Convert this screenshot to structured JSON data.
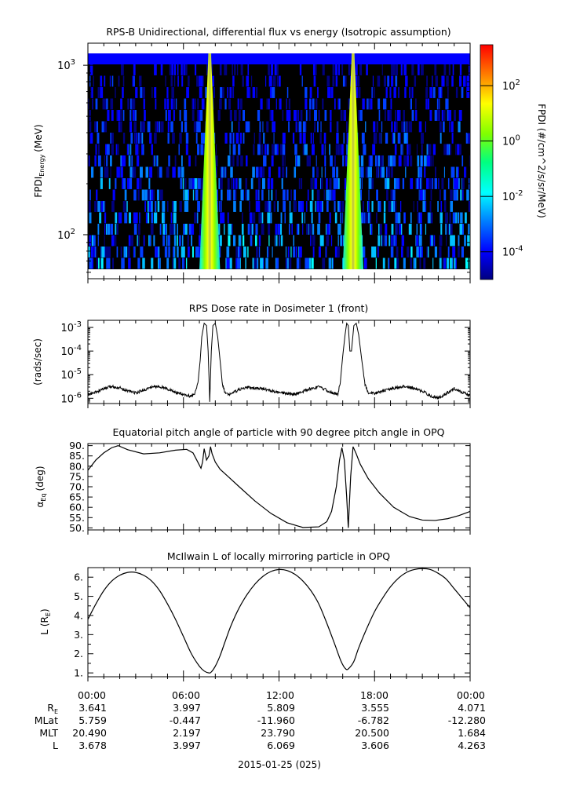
{
  "page": {
    "date_label": "2015-01-25 (025)"
  },
  "ephemeris": {
    "times": [
      "00:00",
      "06:00",
      "12:00",
      "18:00",
      "00:00"
    ],
    "rows": [
      {
        "label": "R",
        "sub": "E",
        "values": [
          "3.641",
          "3.997",
          "5.809",
          "3.555",
          "4.071"
        ]
      },
      {
        "label": "MLat",
        "sub": "",
        "values": [
          "5.759",
          "-0.447",
          "-11.960",
          "-6.782",
          "-12.280"
        ]
      },
      {
        "label": "MLT",
        "sub": "",
        "values": [
          "20.490",
          "2.197",
          "23.790",
          "20.500",
          "1.684"
        ]
      },
      {
        "label": "L",
        "sub": "",
        "values": [
          "3.678",
          "3.997",
          "6.069",
          "3.606",
          "4.263"
        ]
      }
    ]
  },
  "chart_data": [
    {
      "type": "heatmap",
      "title": "RPS-B  Unidirectional, differential flux vs energy (Isotropic assumption)",
      "ylabel": "FPDI",
      "ylabel_sub": "Energy",
      "ylabel_unit": "(MeV)",
      "yscale": "log",
      "ylim": [
        55,
        1350
      ],
      "yticks": [
        {
          "base": "10",
          "exp": "2",
          "value": 100
        },
        {
          "base": "10",
          "exp": "3",
          "value": 1000
        }
      ],
      "xlim_hours": [
        0,
        24
      ],
      "colorbar": {
        "label": "FPDI (#/cm^2/s/sr/MeV)",
        "scale": "log",
        "range": [
          1e-05,
          3000
        ],
        "ticks": [
          {
            "base": "10",
            "exp": "-4",
            "value": 0.0001
          },
          {
            "base": "10",
            "exp": "-2",
            "value": 0.01
          },
          {
            "base": "10",
            "exp": "0",
            "value": 1
          },
          {
            "base": "10",
            "exp": "2",
            "value": 100
          }
        ],
        "colors": [
          "#000080",
          "#0000ff",
          "#0080ff",
          "#00ffff",
          "#00ff80",
          "#80ff00",
          "#ffff00",
          "#ff8000",
          "#ff0000"
        ]
      },
      "features": [
        {
          "description": "belt passage",
          "times_hours": [
            7.0,
            8.3
          ],
          "energy_range_mev": [
            55,
            1300
          ]
        },
        {
          "description": "belt passage",
          "times_hours": [
            16.0,
            17.3
          ],
          "energy_range_mev": [
            55,
            1300
          ]
        }
      ]
    },
    {
      "type": "line",
      "title": "RPS  Dose rate in Dosimeter 1 (front)",
      "ylabel": "(rads/sec)",
      "yscale": "log",
      "ylim": [
        6e-07,
        0.002
      ],
      "yticks": [
        {
          "base": "10",
          "exp": "-3",
          "value": 0.001
        },
        {
          "base": "10",
          "exp": "-4",
          "value": 0.0001
        },
        {
          "base": "10",
          "exp": "-5",
          "value": 1e-05
        },
        {
          "base": "10",
          "exp": "-6",
          "value": 1e-06
        }
      ],
      "x_hours": [
        0,
        0.5,
        1,
        1.5,
        2,
        2.5,
        3,
        3.5,
        4,
        4.5,
        5,
        5.5,
        6,
        6.5,
        6.7,
        6.9,
        7.05,
        7.15,
        7.3,
        7.45,
        7.55,
        7.65,
        7.75,
        7.85,
        8.0,
        8.15,
        8.3,
        8.45,
        8.6,
        8.8,
        9.0,
        9.5,
        10,
        11,
        12,
        13,
        14,
        14.5,
        15,
        15.4,
        15.7,
        15.85,
        16.0,
        16.15,
        16.25,
        16.35,
        16.45,
        16.55,
        16.7,
        16.85,
        17.0,
        17.2,
        17.4,
        17.6,
        18,
        19,
        20,
        21,
        21.5,
        22,
        22.5,
        23,
        23.5,
        24
      ],
      "y": [
        1.4e-06,
        1.8e-06,
        2.5e-06,
        3.2e-06,
        2.8e-06,
        2.1e-06,
        1.7e-06,
        2.2e-06,
        3e-06,
        3.2e-06,
        2.5e-06,
        1.8e-06,
        1.4e-06,
        1.2e-06,
        1.5e-06,
        4e-06,
        4e-05,
        0.0004,
        0.0015,
        0.0012,
        0.0001,
        8e-07,
        0.0001,
        0.0012,
        0.0015,
        0.0004,
        4e-05,
        4e-06,
        1.8e-06,
        1.4e-06,
        1.6e-06,
        2.3e-06,
        2.9e-06,
        2.5e-06,
        1.7e-06,
        1.5e-06,
        2.6e-06,
        3e-06,
        2.2e-06,
        1.6e-06,
        1.5e-06,
        5e-06,
        6e-05,
        0.0005,
        0.0015,
        0.0012,
        0.0001,
        0.0001,
        0.0012,
        0.0015,
        0.0005,
        4e-05,
        4e-06,
        1.7e-06,
        1.6e-06,
        2.5e-06,
        3.2e-06,
        2e-06,
        1.3e-06,
        1e-06,
        1.6e-06,
        2.6e-06,
        1.8e-06,
        1.3e-06
      ]
    },
    {
      "type": "line",
      "title": "Equatorial pitch angle of particle with 90 degree pitch angle in OPQ",
      "ylabel": "α",
      "ylabel_sub": "Eq",
      "ylabel_unit": "(deg)",
      "ylim": [
        49,
        91
      ],
      "yticks": [
        50,
        55,
        60,
        65,
        70,
        75,
        80,
        85,
        90
      ],
      "x_hours": [
        0,
        0.5,
        1,
        1.5,
        1.9,
        2.5,
        3.5,
        4.5,
        5.5,
        6.2,
        6.6,
        6.9,
        7.1,
        7.2,
        7.3,
        7.45,
        7.6,
        7.7,
        7.8,
        8.0,
        8.3,
        8.8,
        9.5,
        10.5,
        11.5,
        12.5,
        13.5,
        14.5,
        15.0,
        15.3,
        15.6,
        15.8,
        15.95,
        16.1,
        16.25,
        16.35,
        16.5,
        16.65,
        16.85,
        17.1,
        17.6,
        18.3,
        19.2,
        20.2,
        21.0,
        21.8,
        22.6,
        23.3,
        24
      ],
      "y": [
        78,
        83,
        86.5,
        89,
        90,
        88,
        86,
        86.5,
        87.8,
        88.2,
        86.5,
        82,
        79,
        82,
        88.5,
        83,
        85,
        89.5,
        86,
        82,
        78.5,
        75,
        70,
        63,
        57,
        52.5,
        50.2,
        50.5,
        53,
        58,
        70,
        83,
        89,
        83,
        65,
        50,
        75,
        89.5,
        86,
        81,
        74,
        67,
        60,
        55.5,
        53.8,
        53.6,
        54.5,
        56,
        58
      ]
    },
    {
      "type": "line",
      "title": "McIlwain L of locally mirroring particle in OPQ",
      "ylabel": "L (R",
      "ylabel_sub": "E",
      "ylabel_unit": ")",
      "ylim": [
        0.8,
        6.5
      ],
      "yticks": [
        1,
        1.5,
        2,
        2.5,
        3,
        3.5,
        4,
        4.5,
        5,
        5.5,
        6
      ],
      "x_hours": [
        0,
        0.5,
        1,
        1.5,
        2,
        2.5,
        3,
        3.5,
        4,
        4.5,
        5,
        5.5,
        6,
        6.5,
        7,
        7.3,
        7.6,
        7.75,
        8,
        8.3,
        8.6,
        9,
        9.5,
        10,
        10.5,
        11,
        11.5,
        12,
        12.5,
        13,
        13.5,
        14,
        14.5,
        15,
        15.5,
        15.9,
        16.2,
        16.4,
        16.7,
        17,
        17.5,
        18,
        18.5,
        19,
        19.5,
        20,
        20.5,
        21,
        21.5,
        22,
        22.5,
        23,
        23.5,
        24
      ],
      "y": [
        3.8,
        4.6,
        5.3,
        5.8,
        6.1,
        6.25,
        6.25,
        6.1,
        5.8,
        5.3,
        4.6,
        3.8,
        2.9,
        2.0,
        1.35,
        1.1,
        1.0,
        1.05,
        1.35,
        1.9,
        2.6,
        3.5,
        4.4,
        5.1,
        5.65,
        6.05,
        6.3,
        6.4,
        6.35,
        6.15,
        5.8,
        5.3,
        4.6,
        3.6,
        2.5,
        1.6,
        1.2,
        1.25,
        1.6,
        2.3,
        3.3,
        4.2,
        4.9,
        5.5,
        5.95,
        6.25,
        6.4,
        6.45,
        6.4,
        6.2,
        5.9,
        5.4,
        4.9,
        4.4
      ]
    }
  ]
}
